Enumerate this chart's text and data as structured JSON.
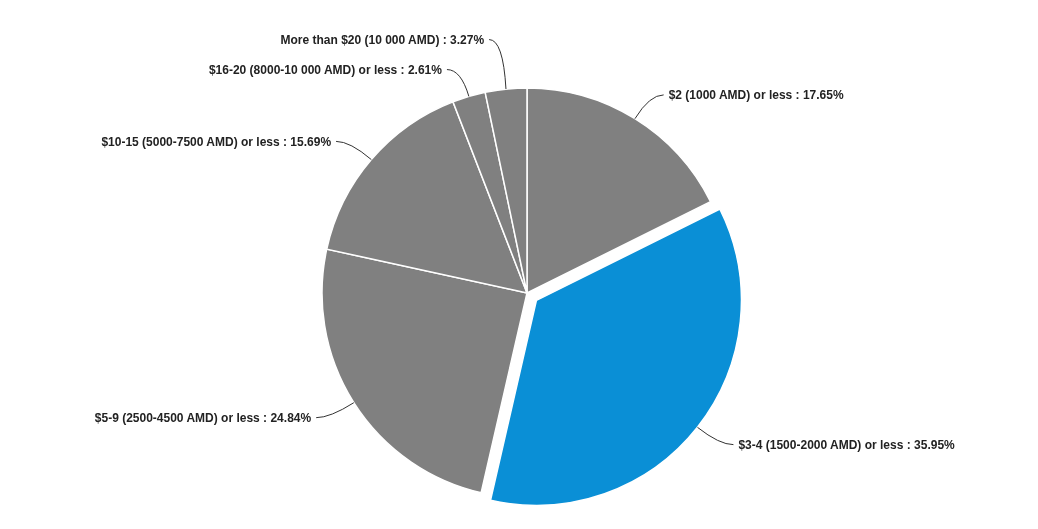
{
  "chart_data": {
    "type": "pie",
    "categories": [
      "$2 (1000 AMD) or less",
      "$3-4 (1500-2000 AMD) or less",
      "$5-9 (2500-4500 AMD) or less",
      "$10-15 (5000-7500 AMD) or less",
      "$16-20 (8000-10 000 AMD) or less",
      "More than $20 (10 000 AMD)"
    ],
    "values": [
      17.65,
      35.95,
      24.84,
      15.69,
      2.61,
      3.27
    ],
    "value_labels": [
      "17.65%",
      "35.95%",
      "24.84%",
      "15.69%",
      "2.61%",
      "3.27%"
    ],
    "colors": [
      "#808080",
      "#0a8fd6",
      "#808080",
      "#808080",
      "#808080",
      "#808080"
    ],
    "legend": false
  }
}
